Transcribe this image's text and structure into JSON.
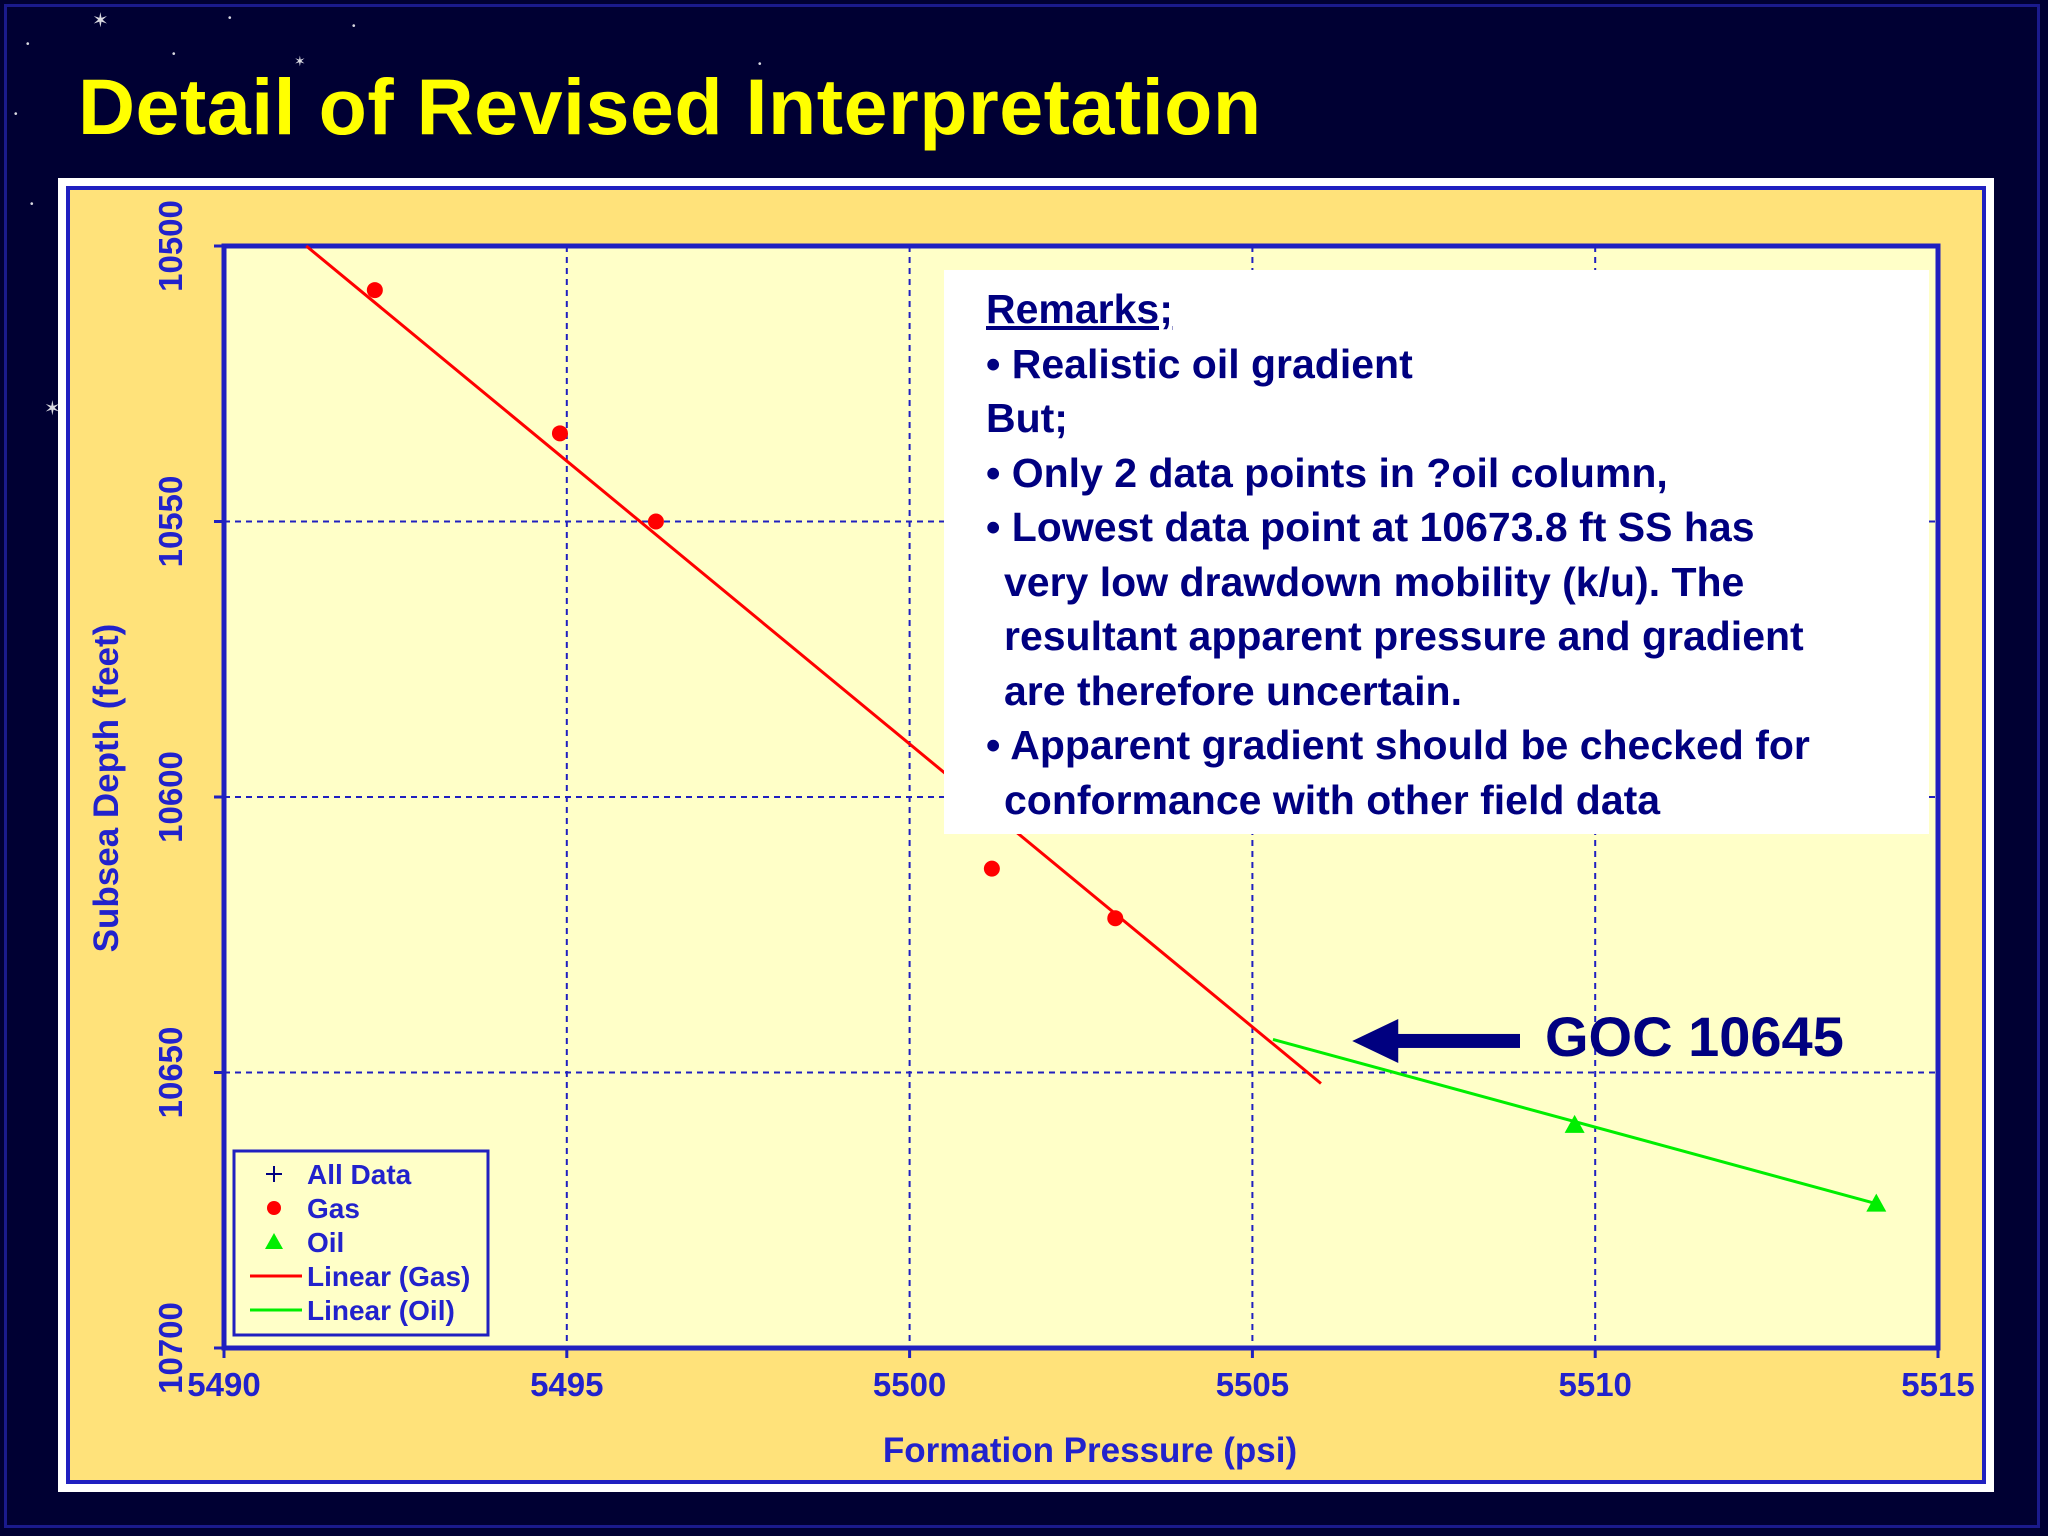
{
  "slide": {
    "title": "Detail of Revised Interpretation",
    "colors": {
      "background": "#000033",
      "title": "#ffff00",
      "panel_border": "#ffffff",
      "chart_outer_fill": "#ffe27a",
      "plot_fill": "#ffffc8",
      "axis_text": "#2222cc",
      "remarks_text": "#000080",
      "gas": "#ff0000",
      "oil": "#00ee00",
      "arrow": "#000080"
    }
  },
  "chart_data": {
    "type": "scatter",
    "xlabel": "Formation Pressure (psi)",
    "ylabel": "Subsea Depth (feet)",
    "xlim": [
      5490,
      5515
    ],
    "ylim": [
      10700,
      10500
    ],
    "y_inverted": true,
    "x_ticks": [
      "5490",
      "5495",
      "5500",
      "5505",
      "5510",
      "5515"
    ],
    "y_ticks": [
      "10500",
      "10550",
      "10600",
      "10650",
      "10700"
    ],
    "grid": true,
    "legend_position": "bottom-left",
    "legend": [
      {
        "label": "All Data",
        "marker": "plus",
        "color": "#000080"
      },
      {
        "label": "Gas",
        "marker": "circle",
        "color": "#ff0000"
      },
      {
        "label": "Oil",
        "marker": "triangle",
        "color": "#00ee00"
      },
      {
        "label": "Linear (Gas)",
        "marker": "line",
        "color": "#ff0000"
      },
      {
        "label": "Linear (Oil)",
        "marker": "line",
        "color": "#00ee00"
      }
    ],
    "series": [
      {
        "name": "Gas",
        "marker": "circle",
        "color": "#ff0000",
        "points": [
          {
            "x": 5492.2,
            "y": 10508
          },
          {
            "x": 5494.9,
            "y": 10534
          },
          {
            "x": 5496.3,
            "y": 10550
          },
          {
            "x": 5501.2,
            "y": 10613
          },
          {
            "x": 5503.0,
            "y": 10622
          }
        ]
      },
      {
        "name": "Oil",
        "marker": "triangle",
        "color": "#00ee00",
        "points": [
          {
            "x": 5509.7,
            "y": 10659.5
          },
          {
            "x": 5514.1,
            "y": 10673.8
          }
        ]
      }
    ],
    "trendlines": [
      {
        "name": "Linear (Gas)",
        "color": "#ff0000",
        "from": [
          5491.2,
          10500
        ],
        "to": [
          5506.0,
          10652
        ]
      },
      {
        "name": "Linear (Oil)",
        "color": "#00ee00",
        "from": [
          5505.3,
          10644
        ],
        "to": [
          5514.1,
          10673.8
        ]
      }
    ],
    "annotation": {
      "label": "GOC 10645",
      "arrow_points_to": [
        5505.8,
        10645
      ]
    }
  },
  "remarks": {
    "heading": "Remarks;",
    "line1": "• Realistic oil gradient",
    "line2": "But;",
    "line3": "• Only 2 data points in ?oil column,",
    "line4": "• Lowest data point at 10673.8 ft SS has",
    "line5": "very low drawdown mobility (k/u).   The",
    "line6": "resultant apparent pressure and gradient",
    "line7": "are therefore uncertain.",
    "line8": "• Apparent gradient should be checked for",
    "line9": "conformance with other field data"
  }
}
